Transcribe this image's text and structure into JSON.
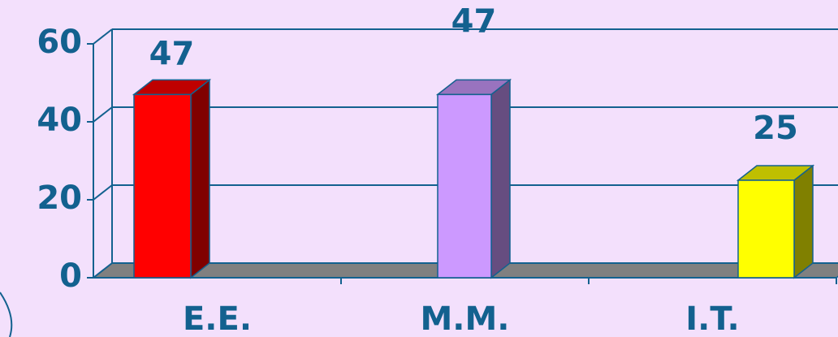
{
  "chart_data": {
    "type": "bar",
    "categories": [
      "E.E.",
      "M.M.",
      "I.T."
    ],
    "values": [
      47,
      47,
      25
    ],
    "colors": [
      "#ff0000",
      "#cc99ff",
      "#ffff00"
    ],
    "ylim": [
      0,
      60
    ],
    "yticks": [
      0,
      20,
      40,
      60
    ],
    "grid": true
  }
}
